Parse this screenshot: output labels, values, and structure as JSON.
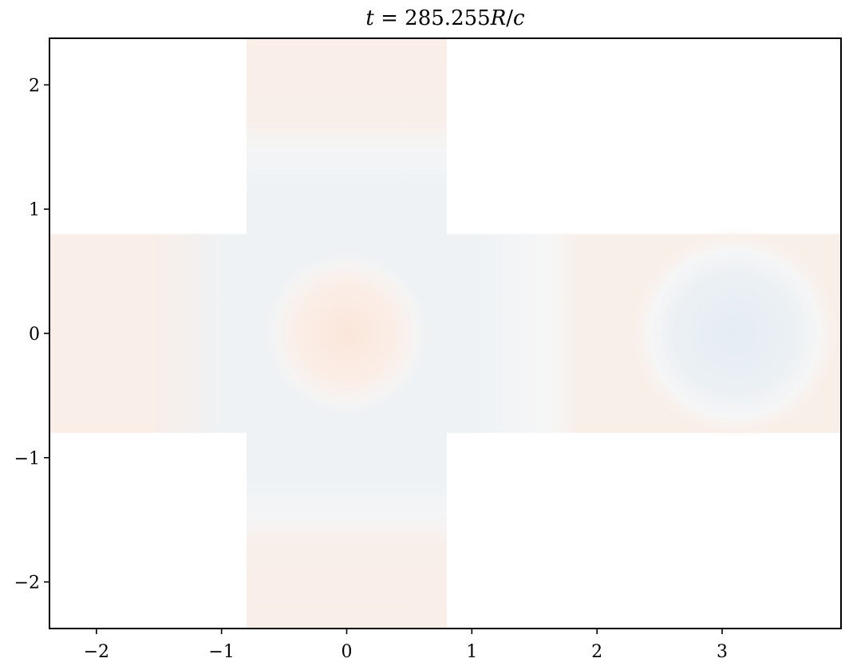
{
  "chart_data": {
    "type": "heatmap",
    "title": "t = 285.255R/c",
    "title_parts": {
      "t": "t",
      "eq": " = ",
      "num": "285.255",
      "R": "R",
      "slash": "/",
      "c": "c"
    },
    "xlabel": "",
    "ylabel": "",
    "xlim": [
      -2.375,
      3.95
    ],
    "ylim": [
      -2.375,
      2.375
    ],
    "xticks": [
      -2,
      -1,
      0,
      1,
      2,
      3
    ],
    "yticks": [
      -2,
      -1,
      0,
      1,
      2
    ],
    "xtick_labels": [
      "−2",
      "−1",
      "0",
      "1",
      "2",
      "3"
    ],
    "ytick_labels": [
      "−2",
      "−1",
      "0",
      "1",
      "2"
    ],
    "domain": {
      "vertical_bar": {
        "x": [
          -0.8,
          0.8
        ],
        "y": [
          -2.375,
          2.375
        ]
      },
      "horizontal_bar": {
        "x": [
          -2.375,
          3.95
        ],
        "y": [
          -0.8,
          0.8
        ]
      }
    },
    "features": [
      {
        "kind": "positive-lobe",
        "center": [
          0.0,
          0.0
        ],
        "radius": 0.7
      },
      {
        "kind": "negative-lobe",
        "center": [
          3.1,
          0.0
        ],
        "radius": 0.85
      }
    ],
    "colormap": {
      "positive": "#fbe9df",
      "negative": "#e7eef3",
      "neutral": "#f7f7f7"
    },
    "grid": false,
    "legend": "none"
  }
}
